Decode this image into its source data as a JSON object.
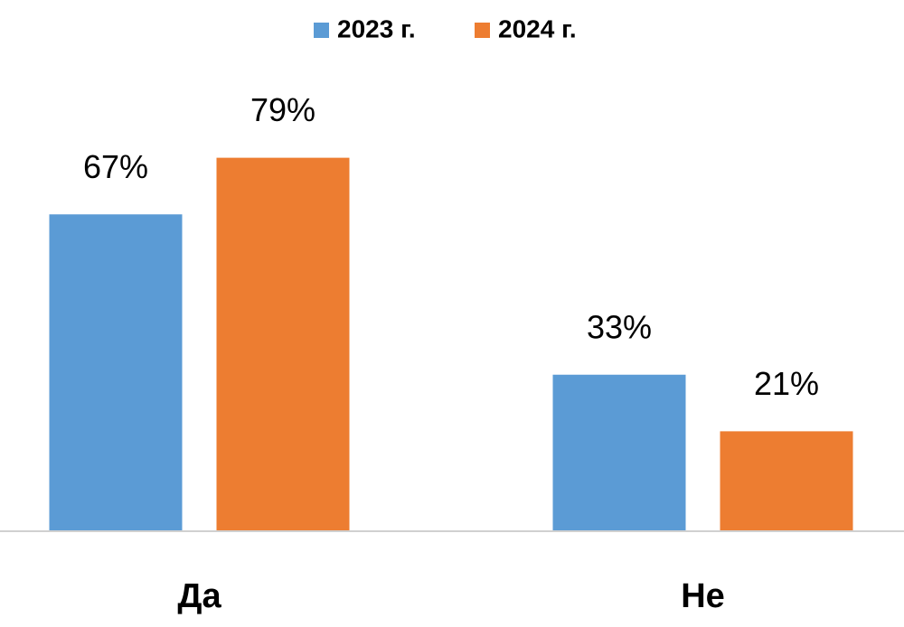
{
  "chart_data": {
    "type": "bar",
    "categories": [
      "Да",
      "Не"
    ],
    "series": [
      {
        "name": "2023 г.",
        "color": "#5b9bd5",
        "values": [
          67,
          33
        ],
        "value_labels": [
          "67%",
          "33%"
        ]
      },
      {
        "name": "2024 г.",
        "color": "#ed7d31",
        "values": [
          79,
          21
        ],
        "value_labels": [
          "79%",
          "21%"
        ]
      }
    ],
    "ylim": [
      0,
      100
    ],
    "legend": "top"
  }
}
